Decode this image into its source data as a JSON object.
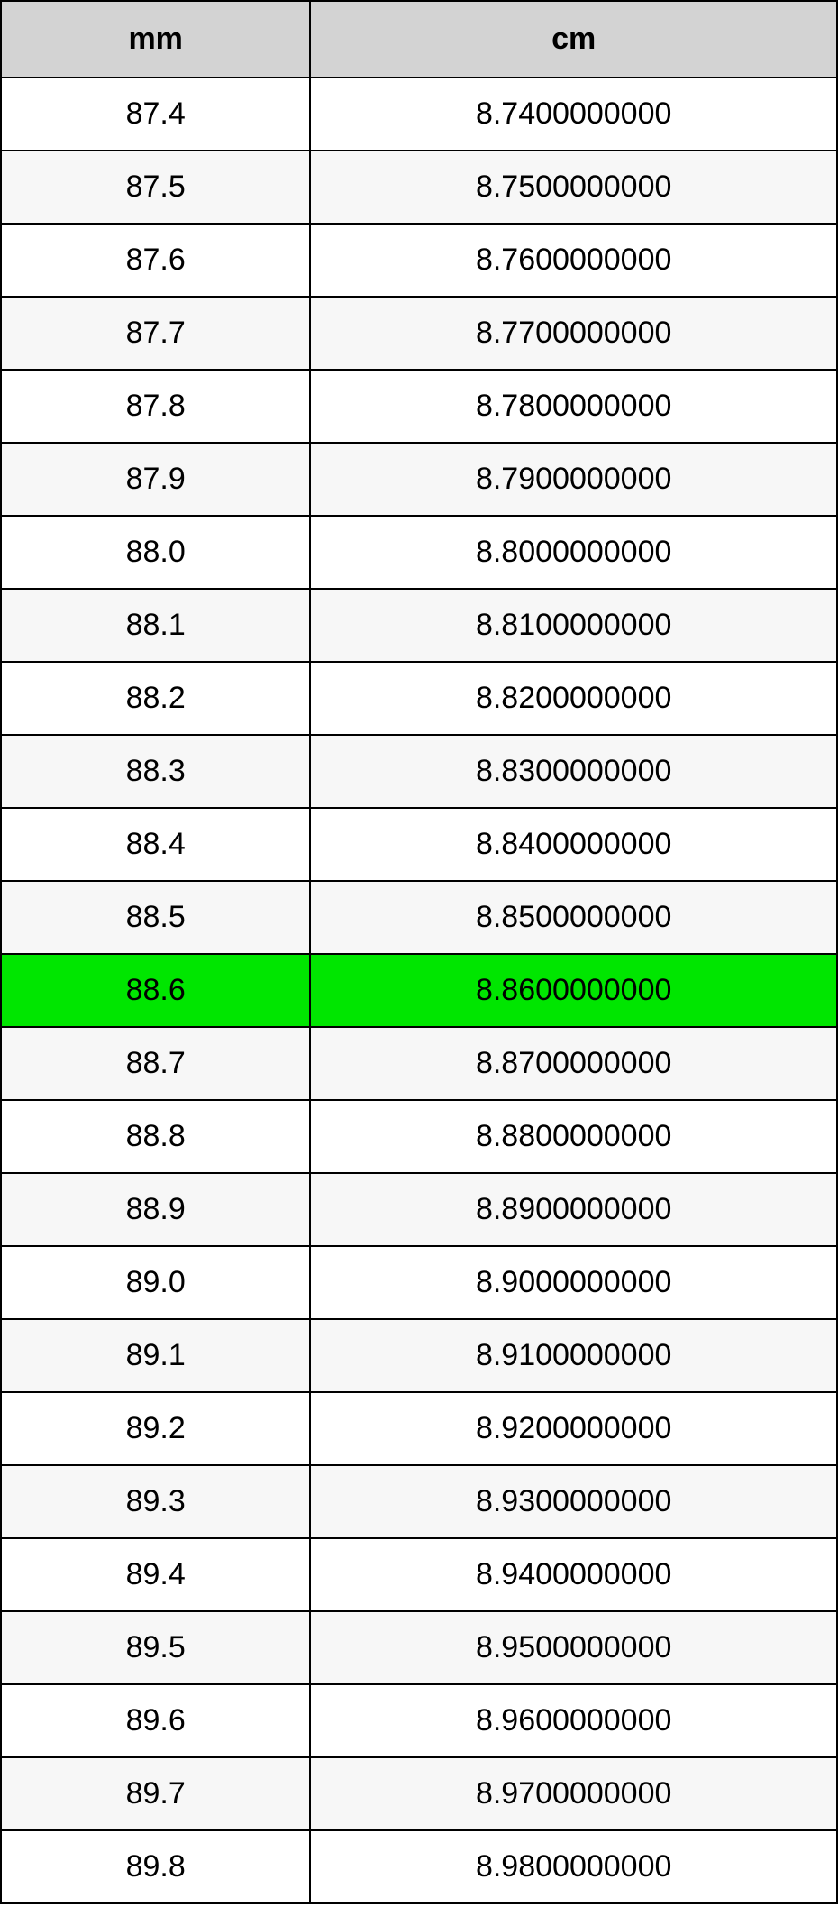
{
  "table": {
    "type": "table",
    "columns": [
      "mm",
      "cm"
    ],
    "column_widths_pct": [
      37,
      63
    ],
    "header_bg": "#d3d3d3",
    "header_font_weight": "bold",
    "header_fontsize": 34,
    "cell_fontsize": 34,
    "text_color": "#000000",
    "border_color": "#000000",
    "border_width": 2,
    "row_bg_even": "#f7f7f7",
    "row_bg_odd": "#ffffff",
    "highlight_bg": "#00e600",
    "highlight_row_index": 12,
    "rows": [
      {
        "mm": "87.4",
        "cm": "8.7400000000"
      },
      {
        "mm": "87.5",
        "cm": "8.7500000000"
      },
      {
        "mm": "87.6",
        "cm": "8.7600000000"
      },
      {
        "mm": "87.7",
        "cm": "8.7700000000"
      },
      {
        "mm": "87.8",
        "cm": "8.7800000000"
      },
      {
        "mm": "87.9",
        "cm": "8.7900000000"
      },
      {
        "mm": "88.0",
        "cm": "8.8000000000"
      },
      {
        "mm": "88.1",
        "cm": "8.8100000000"
      },
      {
        "mm": "88.2",
        "cm": "8.8200000000"
      },
      {
        "mm": "88.3",
        "cm": "8.8300000000"
      },
      {
        "mm": "88.4",
        "cm": "8.8400000000"
      },
      {
        "mm": "88.5",
        "cm": "8.8500000000"
      },
      {
        "mm": "88.6",
        "cm": "8.8600000000"
      },
      {
        "mm": "88.7",
        "cm": "8.8700000000"
      },
      {
        "mm": "88.8",
        "cm": "8.8800000000"
      },
      {
        "mm": "88.9",
        "cm": "8.8900000000"
      },
      {
        "mm": "89.0",
        "cm": "8.9000000000"
      },
      {
        "mm": "89.1",
        "cm": "8.9100000000"
      },
      {
        "mm": "89.2",
        "cm": "8.9200000000"
      },
      {
        "mm": "89.3",
        "cm": "8.9300000000"
      },
      {
        "mm": "89.4",
        "cm": "8.9400000000"
      },
      {
        "mm": "89.5",
        "cm": "8.9500000000"
      },
      {
        "mm": "89.6",
        "cm": "8.9600000000"
      },
      {
        "mm": "89.7",
        "cm": "8.9700000000"
      },
      {
        "mm": "89.8",
        "cm": "8.9800000000"
      }
    ]
  }
}
